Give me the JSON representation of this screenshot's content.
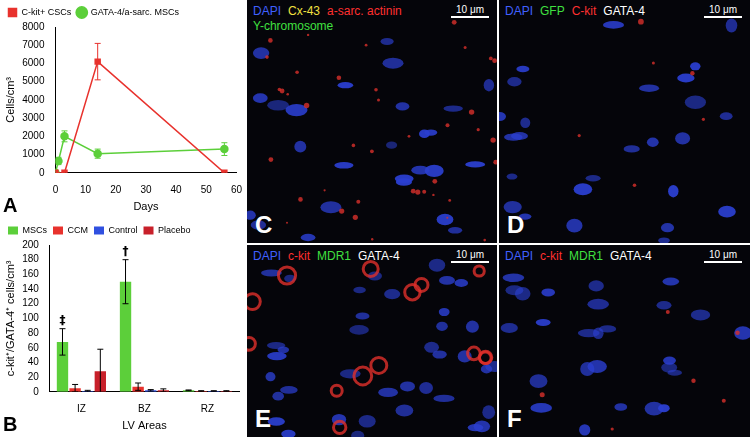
{
  "chart_data": [
    {
      "type": "line",
      "panel_label": "A",
      "x_label": "Days",
      "y_label": "Cells/cm³",
      "xlim": [
        0,
        60
      ],
      "xticks": [
        0,
        10,
        20,
        30,
        40,
        50,
        60
      ],
      "ylim": [
        0,
        8000
      ],
      "yticks": [
        0,
        1000,
        2000,
        3000,
        4000,
        5000,
        6000,
        7000,
        8000
      ],
      "grid": false,
      "legend": "top",
      "series": [
        {
          "name": "C-kit+ CSCs",
          "color": "#e8322d",
          "marker": "square",
          "x": [
            0,
            3,
            14,
            56
          ],
          "values": [
            0,
            0,
            6100,
            0
          ],
          "errors": [
            0,
            0,
            1000,
            0
          ]
        },
        {
          "name": "GATA-4/a-sarc. MSCs",
          "color": "#5ccf3a",
          "marker": "circle",
          "x": [
            0,
            1,
            3,
            14,
            56
          ],
          "values": [
            0,
            650,
            2000,
            1050,
            1300
          ],
          "errors": [
            0,
            200,
            300,
            250,
            350
          ]
        }
      ]
    },
    {
      "type": "bar",
      "panel_label": "B",
      "x_label": "LV Areas",
      "y_label": "c-kit⁺/GATA-4⁺ cells/cm³",
      "categories": [
        "IZ",
        "BZ",
        "RZ"
      ],
      "ylim": [
        0,
        200
      ],
      "yticks": [
        0,
        20,
        40,
        60,
        80,
        100,
        120,
        140,
        160,
        180,
        200
      ],
      "grid": false,
      "legend": "top",
      "series": [
        {
          "name": "MSCs",
          "color": "#5ccf3a",
          "values": [
            68,
            150,
            2
          ],
          "errors": [
            18,
            30,
            0.5
          ]
        },
        {
          "name": "CCM",
          "color": "#e8322d",
          "values": [
            5,
            7,
            1
          ],
          "errors": [
            5,
            5,
            0.5
          ]
        },
        {
          "name": "Control",
          "color": "#3050e0",
          "values": [
            1,
            2,
            1
          ],
          "errors": [
            1,
            1,
            0.5
          ]
        },
        {
          "name": "Placebo",
          "color": "#c8202a",
          "values": [
            28,
            2,
            1
          ],
          "errors": [
            30,
            2,
            0.5
          ]
        }
      ],
      "annotations": [
        {
          "text": "‡",
          "category": "IZ",
          "series": "MSCs"
        },
        {
          "text": "†",
          "category": "BZ",
          "series": "MSCs"
        }
      ]
    }
  ],
  "panels": [
    {
      "label": "C",
      "stains": [
        {
          "text": "DAPI",
          "color": "#4060ff"
        },
        {
          "text": "Cx-43",
          "color": "#f0e040"
        },
        {
          "text": "a-sarc. actinin",
          "color": "#ff3030"
        },
        {
          "text": "Y-chromosome",
          "color": "#40e040"
        }
      ],
      "scale_bar": "10 μm"
    },
    {
      "label": "D",
      "stains": [
        {
          "text": "DAPI",
          "color": "#4060ff"
        },
        {
          "text": "GFP",
          "color": "#40e040"
        },
        {
          "text": "C-kit",
          "color": "#ff3030"
        },
        {
          "text": "GATA-4",
          "color": "#ffffff"
        }
      ],
      "scale_bar": "10 μm"
    },
    {
      "label": "E",
      "stains": [
        {
          "text": "DAPI",
          "color": "#4060ff"
        },
        {
          "text": "c-kit",
          "color": "#ff3030"
        },
        {
          "text": "MDR1",
          "color": "#40e040"
        },
        {
          "text": "GATA-4",
          "color": "#ffffff"
        }
      ],
      "scale_bar": "10 μm"
    },
    {
      "label": "F",
      "stains": [
        {
          "text": "DAPI",
          "color": "#4060ff"
        },
        {
          "text": "c-kit",
          "color": "#ff3030"
        },
        {
          "text": "MDR1",
          "color": "#40e040"
        },
        {
          "text": "GATA-4",
          "color": "#ffffff"
        }
      ],
      "scale_bar": "10 μm"
    }
  ]
}
